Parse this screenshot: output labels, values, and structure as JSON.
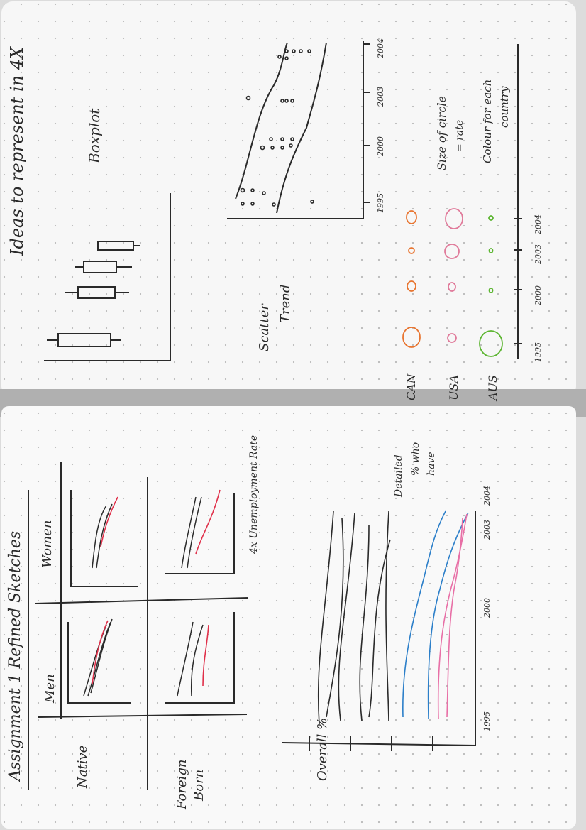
{
  "top_page": {
    "heading": "Ideas to represent in 4X",
    "boxplot_label": "Boxplot",
    "scatter_label_1": "Scatter",
    "scatter_label_2": "Trend",
    "scatter_years": [
      "1995",
      "2000",
      "2003",
      "2004"
    ],
    "bubble_countries": [
      "CAN",
      "USA",
      "AUS"
    ],
    "bubble_years": [
      "1995",
      "2000",
      "2003",
      "2004"
    ],
    "size_note_1": "Size of circle",
    "size_note_2": "= rate",
    "colour_note_1": "Colour for each",
    "colour_note_2": "country"
  },
  "bottom_page": {
    "heading": "Assignment 1 Refined Sketches",
    "col_men": "Men",
    "col_women": "Women",
    "row_native": "Native",
    "row_foreign_1": "Foreign",
    "row_foreign_2": "Born",
    "small_multiple_note": "4x Unemployment Rate",
    "line_note_1": "Detailed",
    "line_note_2": "% who",
    "line_note_3": "have",
    "axis_label": "Overall %",
    "line_years": [
      "1995",
      "2000",
      "2003",
      "2004"
    ]
  },
  "colors": {
    "ink": "#2a2a2a",
    "can": "#e8742f",
    "usa": "#e07a9a",
    "aus": "#5cb531",
    "red_line": "#e0304a",
    "blue_line": "#2c7fc9",
    "pink_line": "#e86fa6"
  }
}
